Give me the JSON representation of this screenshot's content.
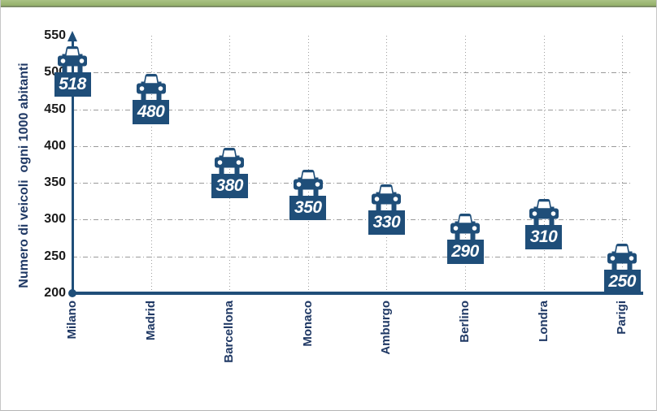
{
  "chart_data": {
    "type": "scatter",
    "marker": "car-front-icon",
    "title": "",
    "ylabel": "Numero di veicoli  ogni 1000 abitanti",
    "xlabel": "",
    "categories": [
      "Milano",
      "Madrid",
      "Barcellona",
      "Monaco",
      "Amburgo",
      "Berlino",
      "Londra",
      "Parigi"
    ],
    "values": [
      518,
      480,
      380,
      350,
      330,
      290,
      310,
      250
    ],
    "ylim": [
      200,
      550
    ],
    "yticks": [
      550,
      500,
      450,
      400,
      350,
      300,
      250,
      200
    ],
    "data_labels_visible": true,
    "legend": "none",
    "grid": {
      "horizontal_style": "dash-dot",
      "vertical_style": "dotted"
    },
    "colors": {
      "accent_navy": "#1F4E79",
      "category_label_navy": "#1F3864",
      "data_label_text": "#FFFFFF",
      "tick_label": "#1A1A1A",
      "gridline_gray": "#9A9A9A",
      "top_bar_green": "#9BB873",
      "top_bar_border_green": "#7D8D66"
    }
  }
}
